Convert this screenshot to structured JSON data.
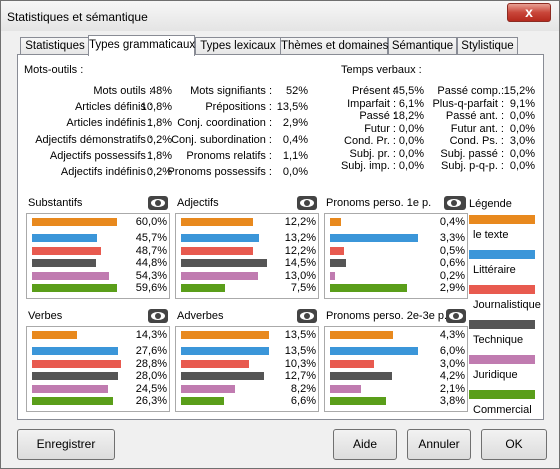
{
  "window": {
    "title": "Statistiques et sémantique",
    "close_glyph": "x"
  },
  "tabs": [
    "Statistiques",
    "Types grammaticaux",
    "Types lexicaux",
    "Thèmes et domaines",
    "Sémantique",
    "Stylistique"
  ],
  "active_tab": 1,
  "mots_outils": {
    "title": "Mots-outils :",
    "left": [
      {
        "label": "Mots outils :",
        "value": "48%"
      },
      {
        "label": "Articles définis :",
        "value": "10,8%"
      },
      {
        "label": "Articles indéfinis :",
        "value": "1,8%"
      },
      {
        "label": "Adjectifs démonstratifs :",
        "value": "0,2%"
      },
      {
        "label": "Adjectifs possessifs :",
        "value": "1,8%"
      },
      {
        "label": "Adjectifs indéfinis :",
        "value": "0,2%"
      }
    ],
    "right": [
      {
        "label": "Mots signifiants :",
        "value": "52%"
      },
      {
        "label": "Prépositions :",
        "value": "13,5%"
      },
      {
        "label": "Conj. coordination :",
        "value": "2,9%"
      },
      {
        "label": "Conj. subordination :",
        "value": "0,4%"
      },
      {
        "label": "Pronoms relatifs :",
        "value": "1,1%"
      },
      {
        "label": "Pronoms possessifs :",
        "value": "0,0%"
      }
    ]
  },
  "temps_verbaux": {
    "title": "Temps verbaux :",
    "left": [
      {
        "label": "Présent :",
        "value": "45,5%"
      },
      {
        "label": "Imparfait :",
        "value": "6,1%"
      },
      {
        "label": "Passé :",
        "value": "18,2%"
      },
      {
        "label": "Futur :",
        "value": "0,0%"
      },
      {
        "label": "Cond. Pr. :",
        "value": "0,0%"
      },
      {
        "label": "Subj. pr. :",
        "value": "0,0%"
      },
      {
        "label": "Subj. imp. :",
        "value": "0,0%"
      }
    ],
    "right": [
      {
        "label": "Passé comp.:",
        "value": "15,2%"
      },
      {
        "label": "Plus-q-parfait :",
        "value": "9,1%"
      },
      {
        "label": "Passé ant. :",
        "value": "0,0%"
      },
      {
        "label": "Futur ant. :",
        "value": "0,0%"
      },
      {
        "label": "Cond. Ps. :",
        "value": "3,0%"
      },
      {
        "label": "Subj. passé :",
        "value": "0,0%"
      },
      {
        "label": "Subj. p-q-p. :",
        "value": "0,0%"
      }
    ]
  },
  "series_colors": [
    "#e8891e",
    "#3b96d9",
    "#e85a4f",
    "#555555",
    "#c07bb0",
    "#5a9e1a"
  ],
  "charts": [
    {
      "title": "Substantifs",
      "values": [
        "60,0%",
        "45,7%",
        "48,7%",
        "44,8%",
        "54,3%",
        "59,6%"
      ],
      "fill": [
        0.94,
        0.72,
        0.77,
        0.71,
        0.86,
        0.94
      ]
    },
    {
      "title": "Adjectifs",
      "values": [
        "12,2%",
        "13,2%",
        "12,2%",
        "14,5%",
        "13,0%",
        "7,5%"
      ],
      "fill": [
        0.8,
        0.87,
        0.8,
        0.95,
        0.85,
        0.49
      ]
    },
    {
      "title": "Pronoms perso. 1e p.",
      "values": [
        "0,4%",
        "3,3%",
        "0,5%",
        "0,6%",
        "0,2%",
        "2,9%"
      ],
      "fill": [
        0.12,
        0.98,
        0.15,
        0.18,
        0.06,
        0.86
      ]
    },
    {
      "title": "Verbes",
      "values": [
        "14,3%",
        "27,6%",
        "28,8%",
        "28,0%",
        "24,5%",
        "26,3%"
      ],
      "fill": [
        0.5,
        0.95,
        0.99,
        0.96,
        0.84,
        0.9
      ]
    },
    {
      "title": "Adverbes",
      "values": [
        "13,5%",
        "13,5%",
        "10,3%",
        "12,7%",
        "8,2%",
        "6,6%"
      ],
      "fill": [
        0.98,
        0.98,
        0.75,
        0.92,
        0.6,
        0.48
      ]
    },
    {
      "title": "Pronoms perso. 2e-3e p.",
      "values": [
        "4,3%",
        "6,0%",
        "3,0%",
        "4,2%",
        "2,1%",
        "3,8%"
      ],
      "fill": [
        0.7,
        0.98,
        0.49,
        0.69,
        0.34,
        0.62
      ]
    }
  ],
  "legend": {
    "title": "Légende",
    "items": [
      "le texte",
      "Littéraire",
      "Journalistique",
      "Technique",
      "Juridique",
      "Commercial"
    ]
  },
  "buttons": {
    "save": "Enregistrer",
    "help": "Aide",
    "cancel": "Annuler",
    "ok": "OK"
  }
}
